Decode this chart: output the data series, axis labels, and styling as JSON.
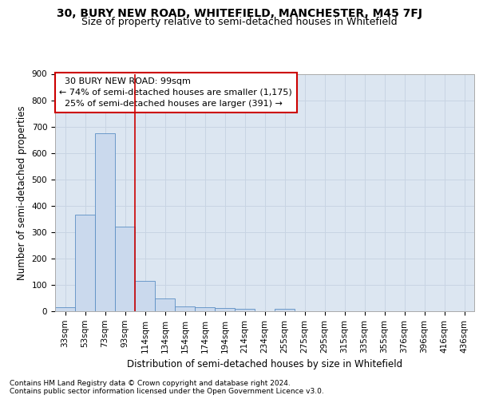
{
  "title1": "30, BURY NEW ROAD, WHITEFIELD, MANCHESTER, M45 7FJ",
  "title2": "Size of property relative to semi-detached houses in Whitefield",
  "xlabel": "Distribution of semi-detached houses by size in Whitefield",
  "ylabel": "Number of semi-detached properties",
  "footnote1": "Contains HM Land Registry data © Crown copyright and database right 2024.",
  "footnote2": "Contains public sector information licensed under the Open Government Licence v3.0.",
  "categories": [
    "33sqm",
    "53sqm",
    "73sqm",
    "93sqm",
    "114sqm",
    "134sqm",
    "154sqm",
    "174sqm",
    "194sqm",
    "214sqm",
    "234sqm",
    "255sqm",
    "275sqm",
    "295sqm",
    "315sqm",
    "335sqm",
    "355sqm",
    "376sqm",
    "396sqm",
    "416sqm",
    "436sqm"
  ],
  "values": [
    15,
    365,
    675,
    320,
    115,
    48,
    17,
    14,
    12,
    8,
    0,
    8,
    0,
    0,
    0,
    0,
    0,
    0,
    0,
    0,
    0
  ],
  "bar_color": "#cad9ed",
  "bar_edge_color": "#5b8ec4",
  "grid_color": "#c8d4e3",
  "background_color": "#dce6f1",
  "vline_color": "#cc0000",
  "annotation_box_edge": "#cc0000",
  "ylim": [
    0,
    900
  ],
  "yticks": [
    0,
    100,
    200,
    300,
    400,
    500,
    600,
    700,
    800,
    900
  ],
  "property_label": "30 BURY NEW ROAD: 99sqm",
  "smaller_pct": 74,
  "smaller_count": "1,175",
  "larger_pct": 25,
  "larger_count": 391,
  "title1_fontsize": 10,
  "title2_fontsize": 9,
  "xlabel_fontsize": 8.5,
  "ylabel_fontsize": 8.5,
  "tick_fontsize": 7.5,
  "annot_fontsize": 8,
  "footnote_fontsize": 6.5
}
